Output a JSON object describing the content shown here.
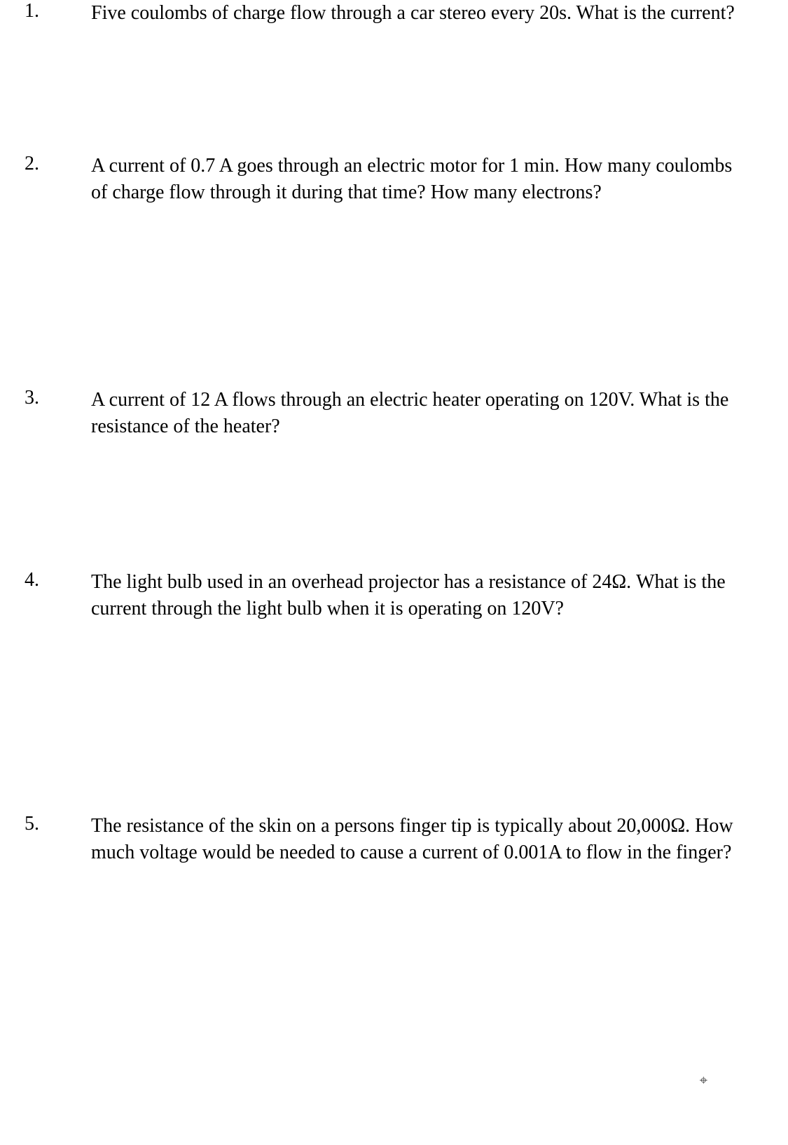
{
  "questions": [
    {
      "number": "1.",
      "text": "Five coulombs of charge flow through a car stereo every 20s.  What is the current?"
    },
    {
      "number": "2.",
      "text": "A current of 0.7 A goes through an electric motor for 1 min.  How many coulombs of charge flow through it during that time?  How many electrons?"
    },
    {
      "number": "3.",
      "text": "A current of 12 A flows through an electric heater operating on 120V.  What is the resistance of the heater?"
    },
    {
      "number": "4.",
      "text": "The light bulb used in an overhead projector has a resistance of 24Ω.  What is the current through the light bulb when it is operating on 120V?"
    },
    {
      "number": "5.",
      "text": "The resistance of the skin on a persons finger tip is typically about 20,000Ω.  How much voltage would be needed to cause a current of 0.001A to flow in the finger?"
    }
  ],
  "cursor_mark": "⌖"
}
